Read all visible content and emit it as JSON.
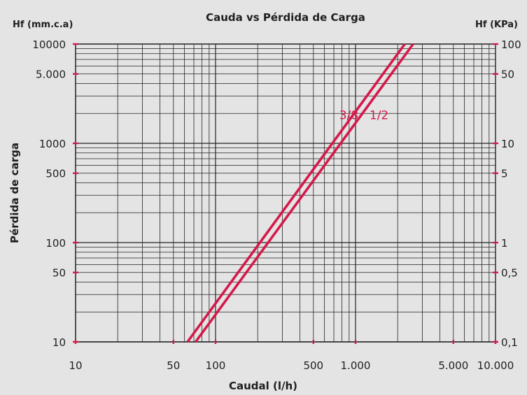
{
  "chart_data": {
    "type": "line",
    "title": "Cauda vs Pérdida de Carga",
    "xlabel": "Caudal (l/h)",
    "ylabel": "Pérdida de carga",
    "y_unit_left": "Hf (mm.c.a)",
    "y_unit_right": "Hf (KPa)",
    "x_scale": "log",
    "y_scale": "log",
    "xlim": [
      10,
      10000
    ],
    "ylim": [
      10,
      10000
    ],
    "grid": true,
    "x_ticks": [
      {
        "value": 10,
        "label": "10"
      },
      {
        "value": 50,
        "label": "50"
      },
      {
        "value": 100,
        "label": "100"
      },
      {
        "value": 500,
        "label": "500"
      },
      {
        "value": 1000,
        "label": "1.000"
      },
      {
        "value": 5000,
        "label": "5.000"
      },
      {
        "value": 10000,
        "label": "10.000"
      }
    ],
    "y_ticks_left": [
      {
        "value": 10,
        "label": "10"
      },
      {
        "value": 50,
        "label": "50"
      },
      {
        "value": 100,
        "label": "100"
      },
      {
        "value": 500,
        "label": "500"
      },
      {
        "value": 1000,
        "label": "1000"
      },
      {
        "value": 5000,
        "label": "5.000"
      },
      {
        "value": 10000,
        "label": "10000"
      }
    ],
    "y_ticks_right": [
      {
        "value": 10,
        "label": "0,1"
      },
      {
        "value": 50,
        "label": "0,5"
      },
      {
        "value": 100,
        "label": "1"
      },
      {
        "value": 500,
        "label": "5"
      },
      {
        "value": 1000,
        "label": "10"
      },
      {
        "value": 5000,
        "label": "50"
      },
      {
        "value": 10000,
        "label": "100"
      }
    ],
    "series": [
      {
        "name": "3/8",
        "x": [
          63,
          2250
        ],
        "y": [
          10,
          10000
        ]
      },
      {
        "name": "1/2",
        "x": [
          72,
          2580
        ],
        "y": [
          10,
          10000
        ]
      }
    ],
    "series_color": "#d41a4a"
  }
}
